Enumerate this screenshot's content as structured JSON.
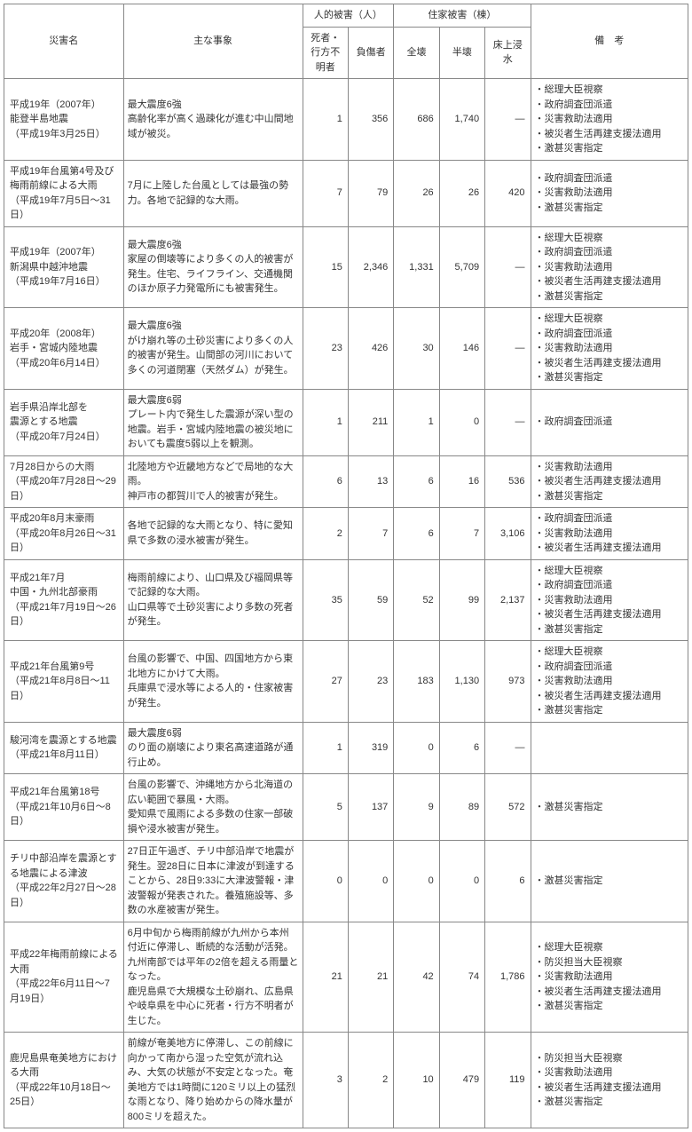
{
  "headers": {
    "name": "災害名",
    "event": "主な事象",
    "human_group": "人的被害（人）",
    "house_group": "住家被害（棟）",
    "note": "備　考",
    "dead": "死者・行方不明者",
    "injured": "負傷者",
    "full": "全壊",
    "half": "半壊",
    "flood": "床上浸水"
  },
  "rows": [
    {
      "name": "平成19年（2007年）\n能登半島地震\n（平成19年3月25日）",
      "event": "最大震度6強\n高齢化率が高く過疎化が進む中山間地域が被災。",
      "dead": "1",
      "injured": "356",
      "full": "686",
      "half": "1,740",
      "flood": "—",
      "notes": [
        "総理大臣視察",
        "政府調査団派遣",
        "災害救助法適用",
        "被災者生活再建支援法適用",
        "激甚災害指定"
      ]
    },
    {
      "name": "平成19年台風第4号及び梅雨前線による大雨\n（平成19年7月5日～31日）",
      "event": "7月に上陸した台風としては最強の勢力。各地で記録的な大雨。",
      "dead": "7",
      "injured": "79",
      "full": "26",
      "half": "26",
      "flood": "420",
      "notes": [
        "政府調査団派遣",
        "災害救助法適用",
        "激甚災害指定"
      ]
    },
    {
      "name": "平成19年（2007年）\n新潟県中越沖地震\n（平成19年7月16日）",
      "event": "最大震度6強\n家屋の倒壊等により多くの人的被害が発生。住宅、ライフライン、交通機関のほか原子力発電所にも被害発生。",
      "dead": "15",
      "injured": "2,346",
      "full": "1,331",
      "half": "5,709",
      "flood": "—",
      "notes": [
        "総理大臣視察",
        "政府調査団派遣",
        "災害救助法適用",
        "被災者生活再建支援法適用",
        "激甚災害指定"
      ]
    },
    {
      "name": "平成20年（2008年）\n岩手・宮城内陸地震\n（平成20年6月14日）",
      "event": "最大震度6強\nがけ崩れ等の土砂災害により多くの人的被害が発生。山間部の河川において多くの河道閉塞（天然ダム）が発生。",
      "dead": "23",
      "injured": "426",
      "full": "30",
      "half": "146",
      "flood": "—",
      "notes": [
        "総理大臣視察",
        "政府調査団派遣",
        "災害救助法適用",
        "被災者生活再建支援法適用",
        "激甚災害指定"
      ]
    },
    {
      "name": "岩手県沿岸北部を\n震源とする地震\n（平成20年7月24日）",
      "event": "最大震度6弱\nプレート内で発生した震源が深い型の地震。岩手・宮城内陸地震の被災地においても震度5弱以上を観測。",
      "dead": "1",
      "injured": "211",
      "full": "1",
      "half": "0",
      "flood": "—",
      "notes": [
        "政府調査団派遣"
      ]
    },
    {
      "name": "7月28日からの大雨\n（平成20年7月28日～29日）",
      "event": "北陸地方や近畿地方などで局地的な大雨。\n神戸市の都賀川で人的被害が発生。",
      "dead": "6",
      "injured": "13",
      "full": "6",
      "half": "16",
      "flood": "536",
      "notes": [
        "災害救助法適用",
        "被災者生活再建支援法適用",
        "激甚災害指定"
      ]
    },
    {
      "name": "平成20年8月末豪雨\n（平成20年8月26日～31日）",
      "event": "各地で記録的な大雨となり、特に愛知県で多数の浸水被害が発生。",
      "dead": "2",
      "injured": "7",
      "full": "6",
      "half": "7",
      "flood": "3,106",
      "notes": [
        "政府調査団派遣",
        "災害救助法適用",
        "被災者生活再建支援法適用"
      ]
    },
    {
      "name": "平成21年7月\n中国・九州北部豪雨\n（平成21年7月19日～26日）",
      "event": "梅雨前線により、山口県及び福岡県等で記録的な大雨。\n山口県等で土砂災害により多数の死者が発生。",
      "dead": "35",
      "injured": "59",
      "full": "52",
      "half": "99",
      "flood": "2,137",
      "notes": [
        "総理大臣視察",
        "政府調査団派遣",
        "災害救助法適用",
        "被災者生活再建支援法適用",
        "激甚災害指定"
      ]
    },
    {
      "name": "平成21年台風第9号\n（平成21年8月8日～11日）",
      "event": "台風の影響で、中国、四国地方から東北地方にかけて大雨。\n兵庫県で浸水等による人的・住家被害が発生。",
      "dead": "27",
      "injured": "23",
      "full": "183",
      "half": "1,130",
      "flood": "973",
      "notes": [
        "総理大臣視察",
        "政府調査団派遣",
        "災害救助法適用",
        "被災者生活再建支援法適用",
        "激甚災害指定"
      ]
    },
    {
      "name": "駿河湾を震源とする地震\n（平成21年8月11日）",
      "event": "最大震度6弱\nのり面の崩壊により東名高速道路が通行止め。",
      "dead": "1",
      "injured": "319",
      "full": "0",
      "half": "6",
      "flood": "—",
      "notes": []
    },
    {
      "name": "平成21年台風第18号\n（平成21年10月6日～8日）",
      "event": "台風の影響で、沖縄地方から北海道の広い範囲で暴風・大雨。\n愛知県で風雨による多数の住家一部破損や浸水被害が発生。",
      "dead": "5",
      "injured": "137",
      "full": "9",
      "half": "89",
      "flood": "572",
      "notes": [
        "激甚災害指定"
      ]
    },
    {
      "name": "チリ中部沿岸を震源とする地震による津波\n（平成22年2月27日～28日）",
      "event": "27日正午過ぎ、チリ中部沿岸で地震が発生。翌28日に日本に津波が到達することから、28日9:33に大津波警報・津波警報が発表された。養殖施設等、多数の水産被害が発生。",
      "dead": "0",
      "injured": "0",
      "full": "0",
      "half": "0",
      "flood": "6",
      "notes": [
        "激甚災害指定"
      ]
    },
    {
      "name": "平成22年梅雨前線による大雨\n（平成22年6月11日～7月19日）",
      "event": "6月中旬から梅雨前線が九州から本州付近に停滞し、断続的な活動が活発。九州南部では平年の2倍を超える雨量となった。\n鹿児島県で大規模な土砂崩れ、広島県や岐阜県を中心に死者・行方不明者が生じた。",
      "dead": "21",
      "injured": "21",
      "full": "42",
      "half": "74",
      "flood": "1,786",
      "notes": [
        "総理大臣視察",
        "防災担当大臣視察",
        "災害救助法適用",
        "被災者生活再建支援法適用",
        "激甚災害指定"
      ]
    },
    {
      "name": "鹿児島県奄美地方における大雨\n（平成22年10月18日～25日）",
      "event": "前線が奄美地方に停滞し、この前線に向かって南から湿った空気が流れ込み、大気の状態が不安定となった。奄美地方では1時間に120ミリ以上の猛烈な雨となり、降り始めからの降水量が800ミリを超えた。",
      "dead": "3",
      "injured": "2",
      "full": "10",
      "half": "479",
      "flood": "119",
      "notes": [
        "防災担当大臣視察",
        "災害救助法適用",
        "被災者生活再建支援法適用",
        "激甚災害指定"
      ]
    }
  ]
}
